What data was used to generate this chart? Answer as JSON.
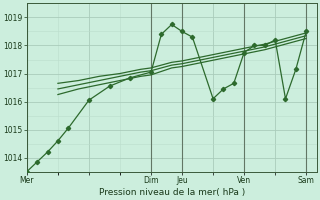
{
  "bg_color": "#cceedd",
  "grid_color_major": "#aaccbb",
  "grid_color_minor": "#bbddcc",
  "line_color": "#2d6a2d",
  "vline_color": "#556655",
  "xlabel": "Pression niveau de la mer( hPa )",
  "ylim": [
    1013.5,
    1019.5
  ],
  "yticks": [
    1014,
    1015,
    1016,
    1017,
    1018,
    1019
  ],
  "xtick_labels": [
    "Mer",
    "",
    "Dim",
    "Jeu",
    "",
    "Ven",
    "",
    "Sam"
  ],
  "xtick_positions": [
    0,
    6,
    12,
    15,
    18,
    21,
    24,
    27
  ],
  "vline_positions": [
    0,
    12,
    15,
    21,
    27
  ],
  "xlim": [
    0,
    28
  ],
  "series1": {
    "x": [
      0,
      1,
      2,
      3,
      4,
      6,
      8,
      10,
      12,
      13,
      14,
      15,
      16,
      18,
      19,
      20,
      21,
      22,
      23,
      24,
      25,
      26,
      27
    ],
    "y": [
      1013.5,
      1013.85,
      1014.2,
      1014.6,
      1015.05,
      1016.05,
      1016.55,
      1016.85,
      1017.05,
      1018.4,
      1018.75,
      1018.5,
      1018.3,
      1016.1,
      1016.45,
      1016.65,
      1017.75,
      1018.0,
      1018.0,
      1018.2,
      1016.1,
      1017.15,
      1018.5
    ]
  },
  "series2": {
    "x": [
      3,
      5,
      7,
      9,
      11,
      12,
      14,
      15,
      17,
      19,
      21,
      23,
      25,
      27
    ],
    "y": [
      1016.65,
      1016.75,
      1016.9,
      1017.0,
      1017.15,
      1017.2,
      1017.4,
      1017.45,
      1017.6,
      1017.75,
      1017.9,
      1018.05,
      1018.25,
      1018.45
    ]
  },
  "series3": {
    "x": [
      3,
      5,
      7,
      9,
      11,
      12,
      14,
      15,
      17,
      19,
      21,
      23,
      25,
      27
    ],
    "y": [
      1016.45,
      1016.6,
      1016.75,
      1016.9,
      1017.05,
      1017.1,
      1017.3,
      1017.35,
      1017.5,
      1017.65,
      1017.8,
      1017.95,
      1018.15,
      1018.35
    ]
  },
  "series4": {
    "x": [
      3,
      5,
      7,
      9,
      11,
      12,
      14,
      15,
      17,
      19,
      21,
      23,
      25,
      27
    ],
    "y": [
      1016.25,
      1016.45,
      1016.6,
      1016.75,
      1016.9,
      1016.95,
      1017.2,
      1017.25,
      1017.4,
      1017.55,
      1017.7,
      1017.85,
      1018.05,
      1018.25
    ]
  }
}
